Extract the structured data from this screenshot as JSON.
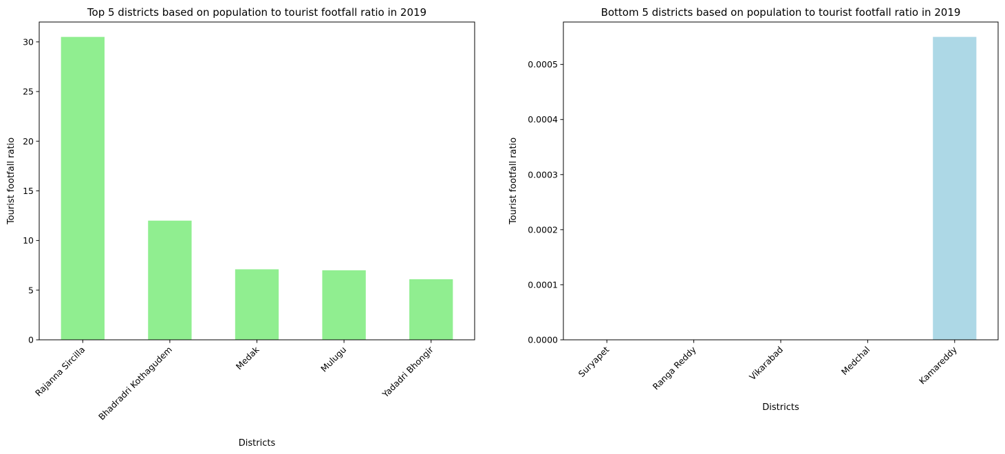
{
  "chart_data": [
    {
      "type": "bar",
      "title": "Top 5 districts based on population to tourist footfall ratio in 2019",
      "xlabel": "Districts",
      "ylabel": "Tourist footfall ratio",
      "categories": [
        "Rajanna Sircilla",
        "Bhadradri Kothagudem",
        "Medak",
        "Mulugu",
        "Yadadri Bhongir"
      ],
      "values": [
        30.5,
        12.0,
        7.1,
        7.0,
        6.1
      ],
      "ylim": [
        0,
        32
      ],
      "yticks": [
        0,
        5,
        10,
        15,
        20,
        25,
        30
      ],
      "ytick_labels": [
        "0",
        "5",
        "10",
        "15",
        "20",
        "25",
        "30"
      ],
      "bar_color": "#90ee90",
      "xtick_rotation": 45,
      "grid": false
    },
    {
      "type": "bar",
      "title": "Bottom 5 districts based on population to tourist footfall ratio in 2019",
      "xlabel": "Districts",
      "ylabel": "Tourist footfall ratio",
      "categories": [
        "Suryapet",
        "Ranga Reddy",
        "Vikarabad",
        "Medchal",
        "Kamareddy"
      ],
      "values": [
        0,
        0,
        0,
        0,
        0.00055
      ],
      "ylim": [
        0,
        0.000577
      ],
      "yticks": [
        0,
        0.0001,
        0.0002,
        0.0003,
        0.0004,
        0.0005
      ],
      "ytick_labels": [
        "0.0000",
        "0.0001",
        "0.0002",
        "0.0003",
        "0.0004",
        "0.0005"
      ],
      "bar_color": "#add8e6",
      "xtick_rotation": 45,
      "grid": false
    }
  ]
}
